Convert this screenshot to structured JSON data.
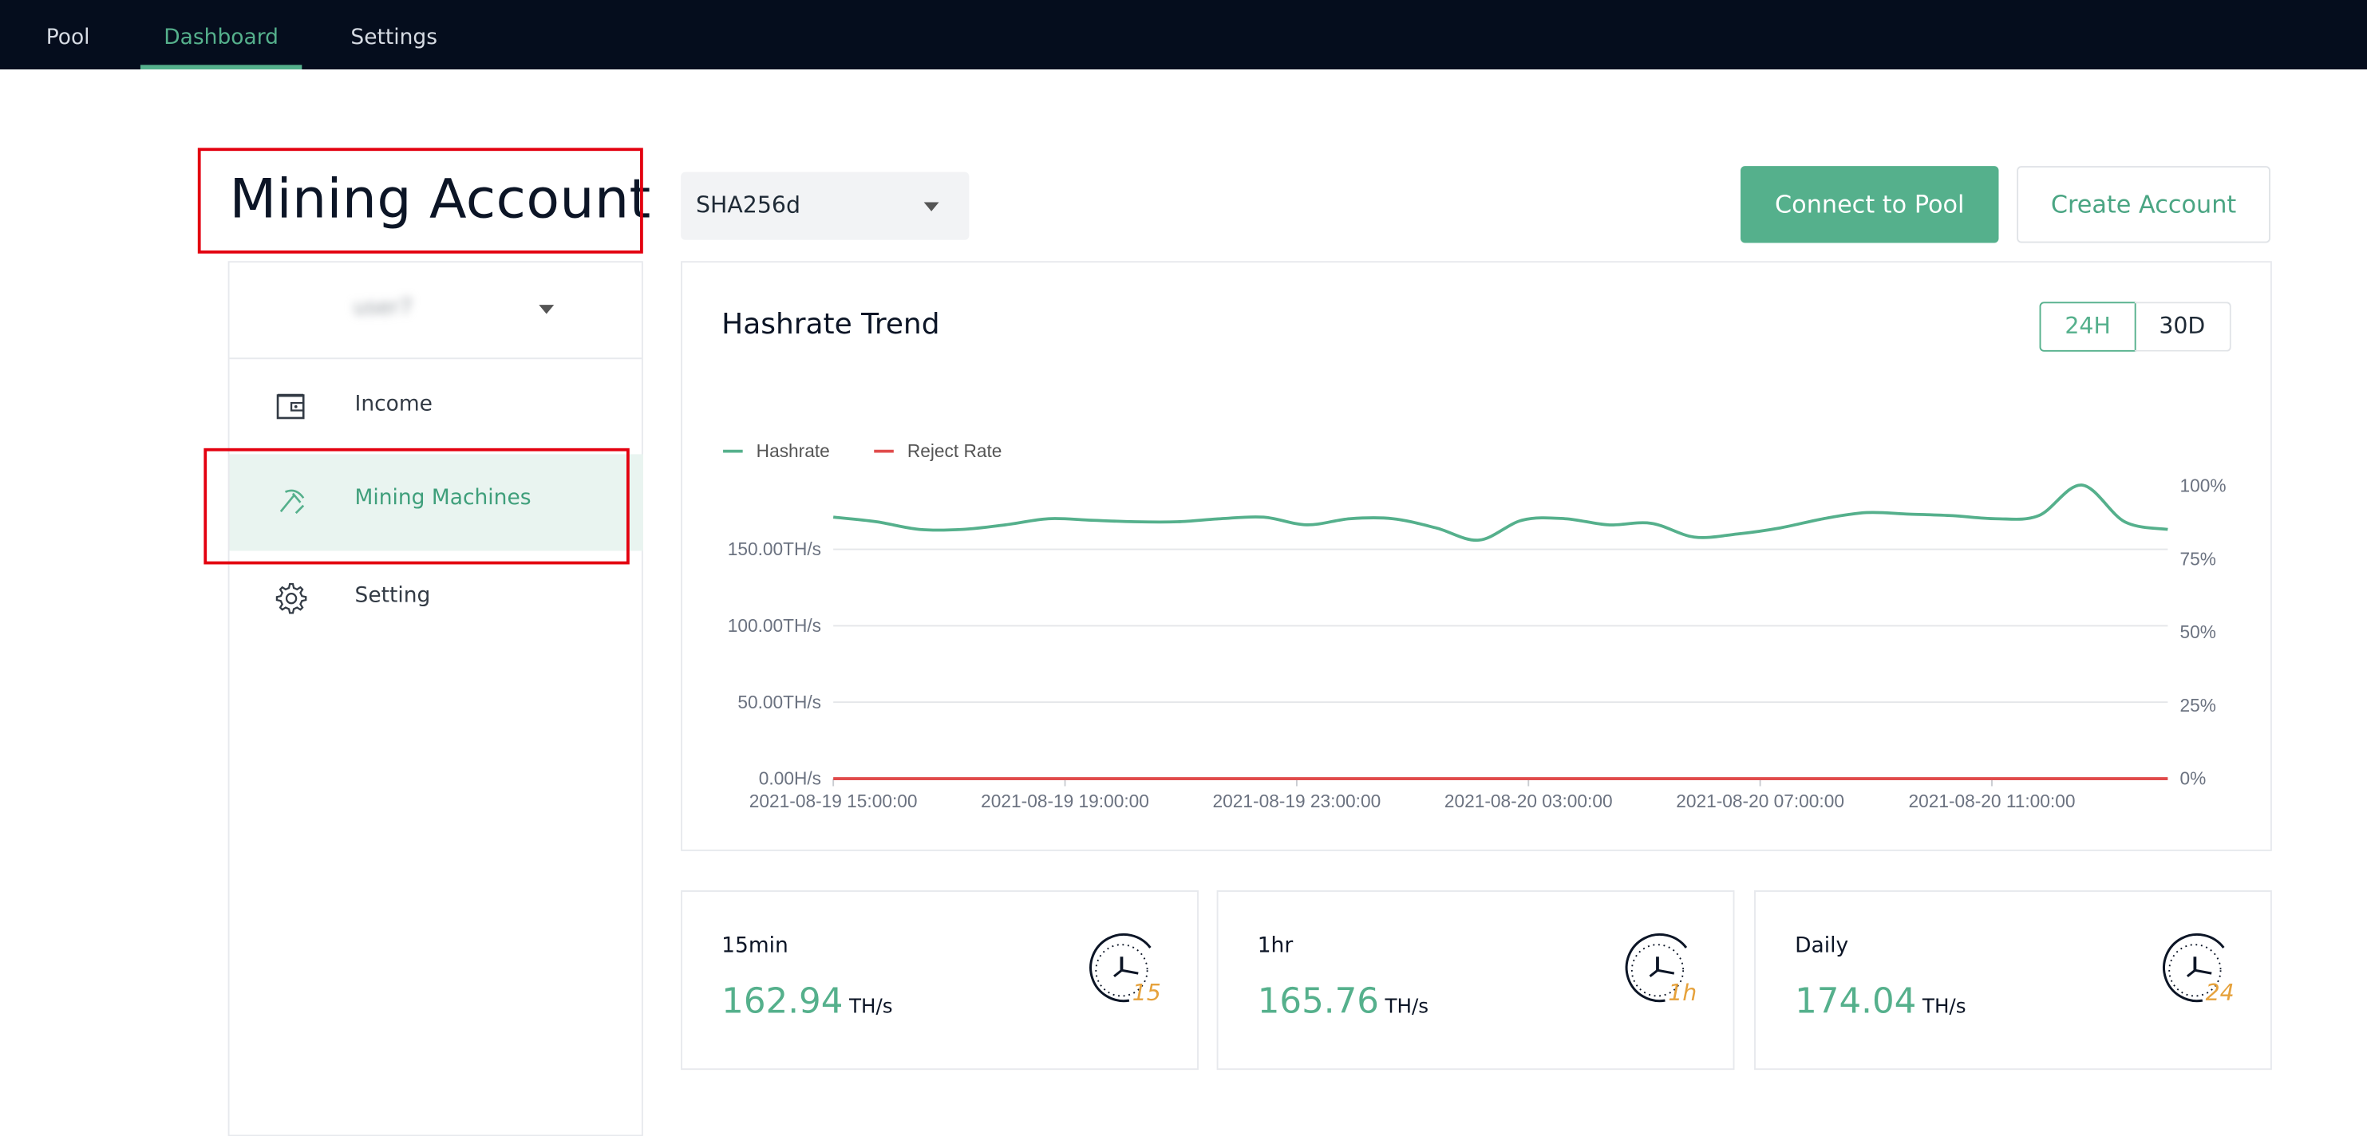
{
  "nav": {
    "tabs": [
      {
        "label": "Pool"
      },
      {
        "label": "Dashboard",
        "active": true
      },
      {
        "label": "Settings"
      }
    ]
  },
  "page": {
    "title": "Mining Account"
  },
  "sidebar": {
    "user": "user7",
    "items": [
      {
        "label": "Income",
        "icon": "wallet-icon"
      },
      {
        "label": "Mining Machines",
        "icon": "pickaxe-icon",
        "active": true
      },
      {
        "label": "Setting",
        "icon": "gear-icon"
      }
    ]
  },
  "toolbar": {
    "algorithm": "SHA256d",
    "connect_label": "Connect to Pool",
    "create_label": "Create Account"
  },
  "chart": {
    "title": "Hashrate Trend",
    "ranges": [
      "24H",
      "30D"
    ],
    "active_range": "24H"
  },
  "chart_data": {
    "type": "line",
    "legend": [
      "Hashrate",
      "Reject Rate"
    ],
    "legend_position": "top-left",
    "y_left_ticks": [
      "0.00H/s",
      "50.00TH/s",
      "100.00TH/s",
      "150.00TH/s"
    ],
    "y_right_ticks": [
      "0%",
      "25%",
      "50%",
      "75%",
      "100%"
    ],
    "x_ticks": [
      "2021-08-19 15:00:00",
      "2021-08-19 19:00:00",
      "2021-08-19 23:00:00",
      "2021-08-20 03:00:00",
      "2021-08-20 07:00:00",
      "2021-08-20 11:00:00"
    ],
    "ylim_left_th": [
      0,
      150
    ],
    "ylim_right_pct": [
      0,
      100
    ],
    "grid": true,
    "colors": {
      "hashrate": "#55b08c",
      "reject": "#e04b4b"
    },
    "series": [
      {
        "name": "Hashrate",
        "unit": "TH/s",
        "values": [
          171,
          168,
          163,
          163,
          166,
          170,
          169,
          168,
          168,
          170,
          171,
          166,
          170,
          170,
          164,
          156,
          169,
          170,
          166,
          167,
          158,
          160,
          164,
          170,
          174,
          173,
          172,
          170,
          172,
          192,
          168,
          163
        ]
      },
      {
        "name": "Reject Rate",
        "unit": "%",
        "values": [
          0,
          0,
          0,
          0,
          0,
          0,
          0,
          0,
          0,
          0,
          0,
          0,
          0,
          0,
          0,
          0,
          0,
          0,
          0,
          0,
          0,
          0,
          0,
          0,
          0,
          0,
          0,
          0,
          0,
          0,
          0,
          0
        ]
      }
    ]
  },
  "stats": [
    {
      "label": "15min",
      "value": "162.94",
      "unit": "TH/s",
      "clock": "15"
    },
    {
      "label": "1hr",
      "value": "165.76",
      "unit": "TH/s",
      "clock": "1h"
    },
    {
      "label": "Daily",
      "value": "174.04",
      "unit": "TH/s",
      "clock": "24"
    }
  ]
}
